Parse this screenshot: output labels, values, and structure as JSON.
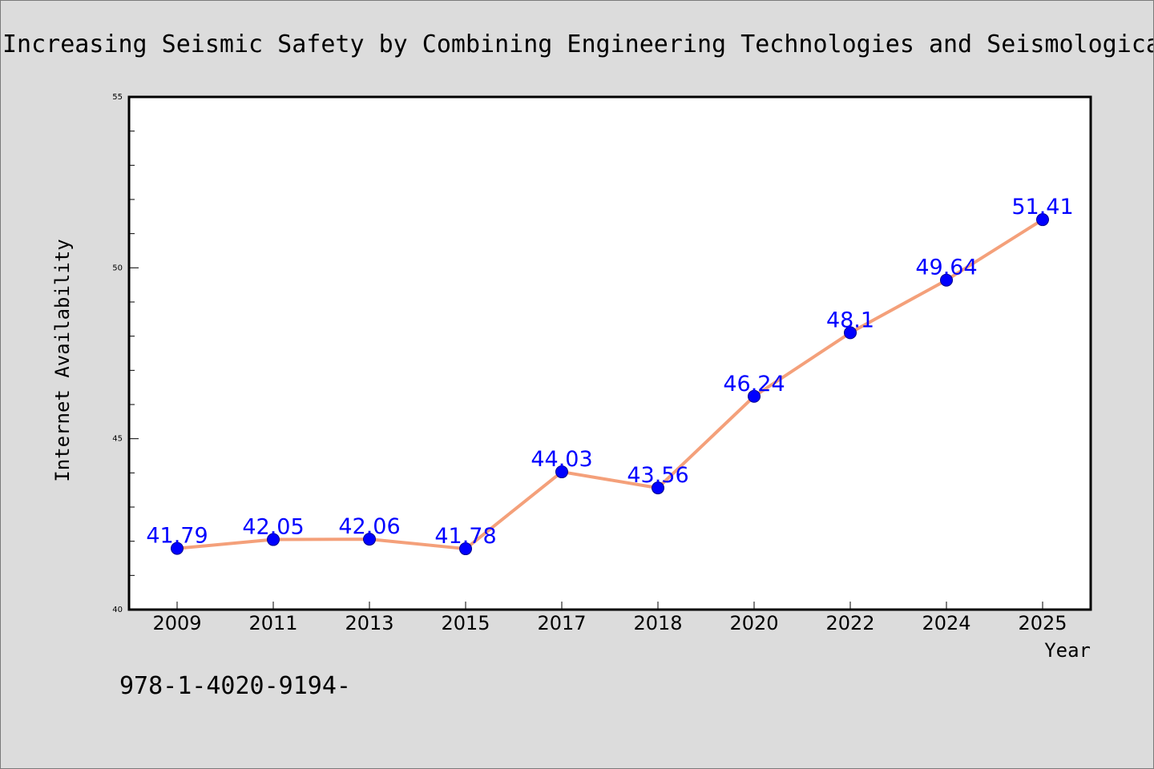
{
  "chart_data": {
    "type": "line",
    "title": "Increasing Seismic Safety by Combining Engineering Technologies and Seismological",
    "xlabel": "Year",
    "ylabel": "Internet Availability",
    "categories": [
      "2009",
      "2011",
      "2013",
      "2015",
      "2017",
      "2018",
      "2020",
      "2022",
      "2024",
      "2025"
    ],
    "series": [
      {
        "values": [
          41.79,
          42.05,
          42.06,
          41.78,
          44.03,
          43.56,
          46.24,
          48.1,
          49.64,
          51.41
        ],
        "data_labels": [
          "41.79",
          "42.05",
          "42.06",
          "41.78",
          "44.03",
          "43.56",
          "46.24",
          "48.1",
          "49.64",
          "51.41"
        ],
        "line_color": "#f4a07a",
        "marker_color": "#0000ff"
      }
    ],
    "ylim": [
      40,
      55
    ],
    "y_ticks": [
      "40",
      "45",
      "50",
      "55"
    ],
    "grid": false,
    "legend": "none"
  },
  "footnote": "978-1-4020-9194-",
  "colors": {
    "background": "#dcdcdc",
    "plot_area": "#ffffff",
    "line": "#f4a07a",
    "marker": "#0000ff",
    "data_label": "#0000ff"
  }
}
